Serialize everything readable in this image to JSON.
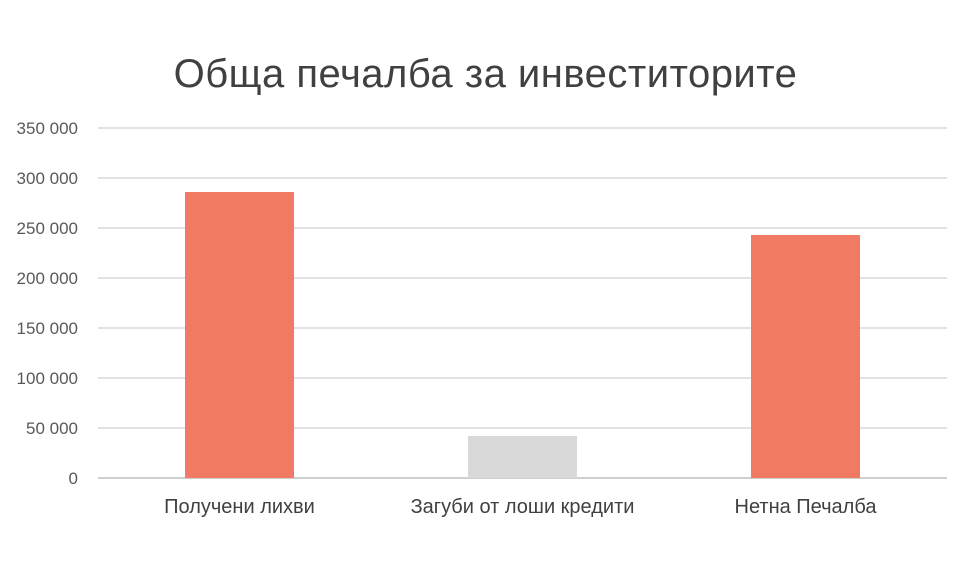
{
  "chart_data": {
    "type": "bar",
    "title": "Обща печалба за инвеститорите",
    "categories": [
      "Получени лихви",
      "Загуби от лоши кредити",
      "Нетна Печалба"
    ],
    "values": [
      286000,
      42000,
      243000
    ],
    "colors": [
      "#f07a64",
      "#d9d9d9",
      "#f07a64"
    ],
    "ylim": [
      0,
      350000
    ],
    "yticks": [
      0,
      50000,
      100000,
      150000,
      200000,
      250000,
      300000,
      350000
    ],
    "ytick_labels": [
      "0",
      "50 000",
      "100 000",
      "150 000",
      "200 000",
      "250 000",
      "300 000",
      "350 000"
    ],
    "grid": true,
    "xlabel": "",
    "ylabel": ""
  }
}
